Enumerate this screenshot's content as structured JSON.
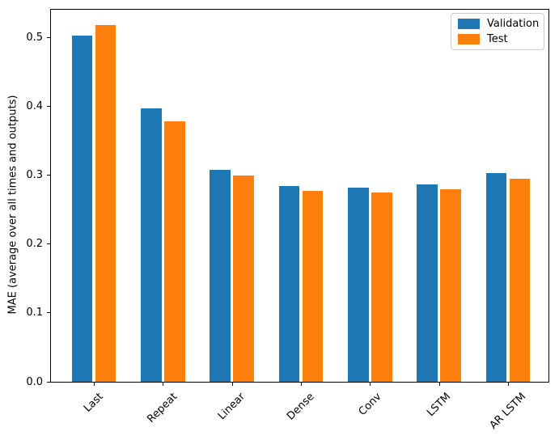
{
  "chart_data": {
    "type": "bar",
    "title": "",
    "xlabel": "",
    "ylabel": "MAE (average over all times and outputs)",
    "categories": [
      "Last",
      "Repeat",
      "Linear",
      "Dense",
      "Conv",
      "LSTM",
      "AR LSTM"
    ],
    "series": [
      {
        "name": "Validation",
        "color": "#1f77b4",
        "values": [
          0.503,
          0.397,
          0.308,
          0.284,
          0.282,
          0.287,
          0.303
        ]
      },
      {
        "name": "Test",
        "color": "#ff7f0e",
        "values": [
          0.518,
          0.379,
          0.3,
          0.278,
          0.275,
          0.28,
          0.295
        ]
      }
    ],
    "y_ticks": [
      "0.0",
      "0.1",
      "0.2",
      "0.3",
      "0.4",
      "0.5"
    ],
    "ylim": [
      0,
      0.542
    ],
    "bar_width_fraction": 0.3,
    "bar_offset_fraction": 0.17,
    "x_tick_rotation_deg": 45,
    "grid": false,
    "legend": {
      "position": "upper right",
      "entries": [
        "Validation",
        "Test"
      ]
    },
    "frame_color": "#000000",
    "legend_border_color": "#cccccc",
    "background_color": "#ffffff"
  }
}
